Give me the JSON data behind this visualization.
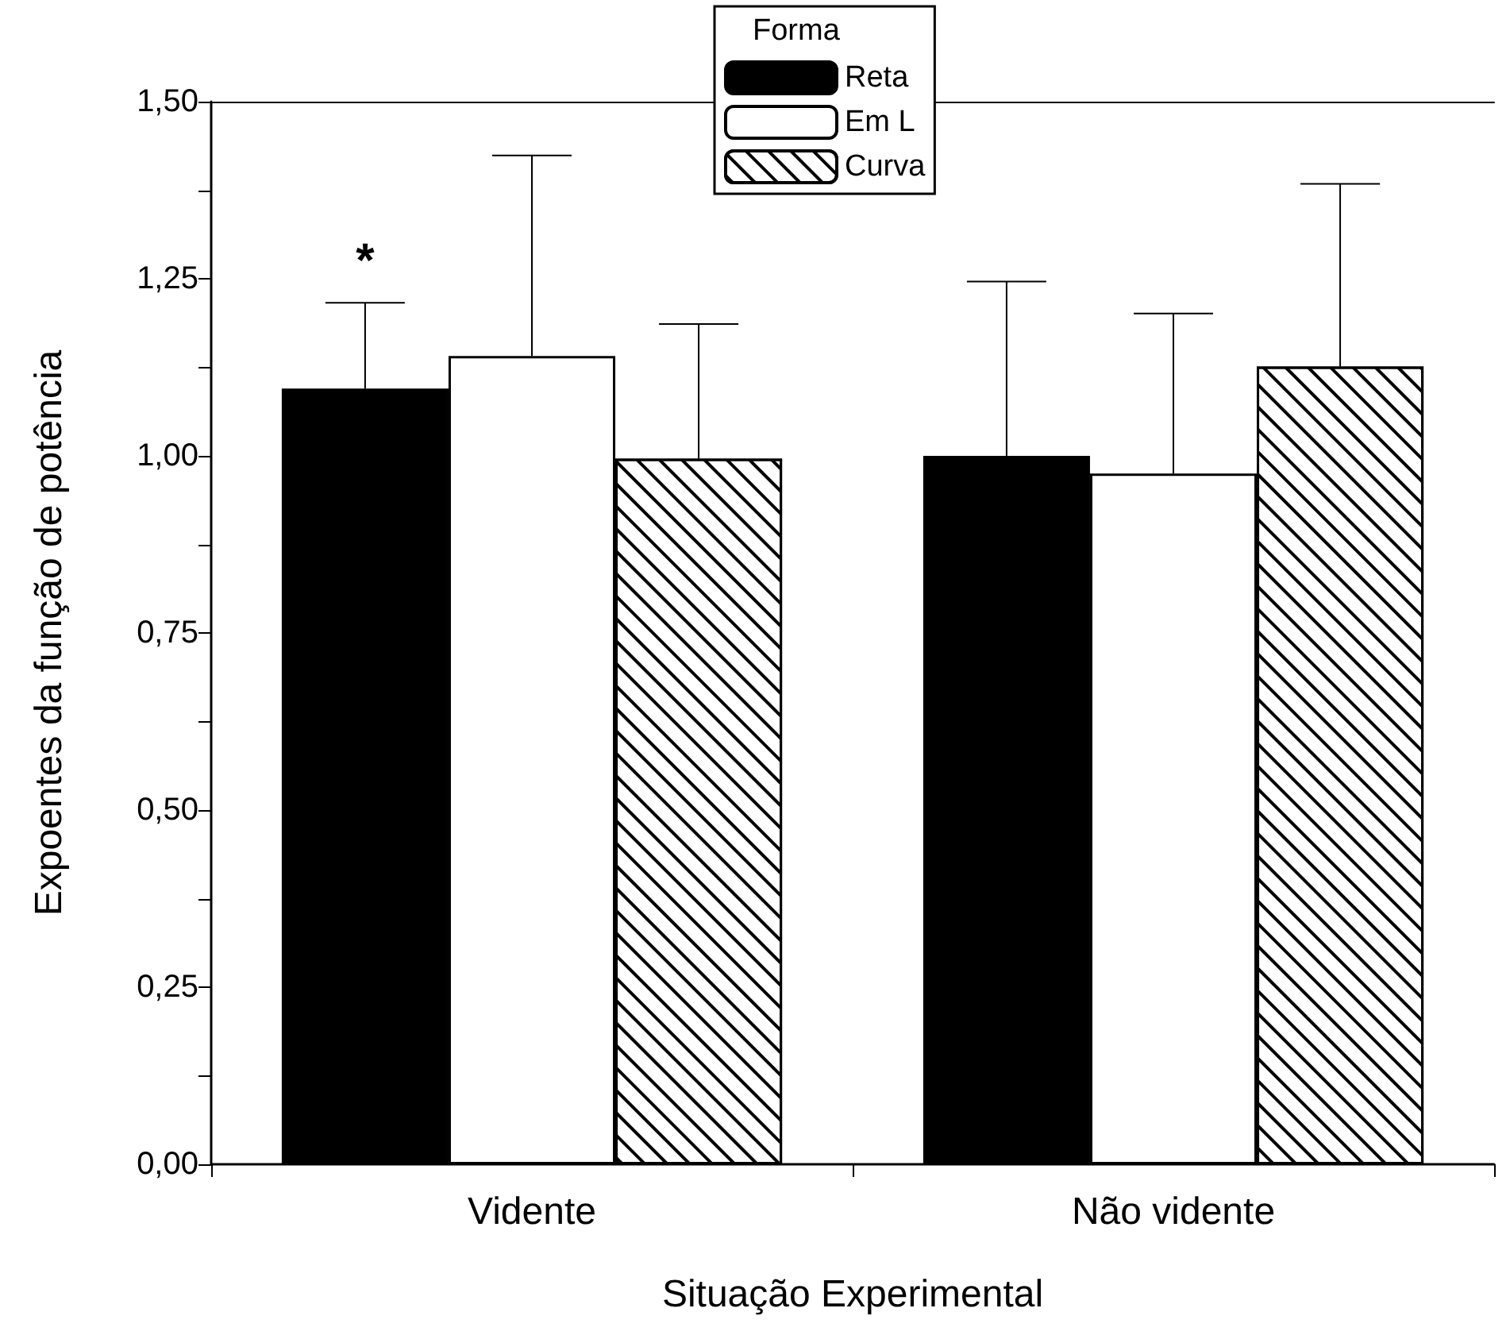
{
  "chart_data": {
    "type": "bar",
    "xlabel": "Situação Experimental",
    "ylabel": "Expoentes da função de potência",
    "legend_title": "Forma",
    "legend": "top",
    "categories": [
      "Vidente",
      "Não vidente"
    ],
    "series": [
      {
        "name": "Reta",
        "color": "#000000",
        "values": [
          1.095,
          1.0
        ],
        "errors": [
          [
            1.095,
            1.216
          ],
          [
            1.0,
            1.246
          ]
        ]
      },
      {
        "name": "Em L",
        "color": "#ffffff",
        "values": [
          1.141,
          0.975
        ],
        "errors": [
          [
            1.141,
            1.424
          ],
          [
            0.975,
            1.201
          ]
        ]
      },
      {
        "name": "Curva",
        "color": "#ffffff",
        "values": [
          0.996,
          1.126
        ],
        "errors": [
          [
            0.996,
            1.186
          ],
          [
            1.126,
            1.384
          ]
        ]
      }
    ],
    "ylim": [
      0,
      1.5
    ],
    "yticks": [
      {
        "value": 0,
        "label": "0,00"
      },
      {
        "value": 0.125,
        "label": null
      },
      {
        "value": 0.25,
        "label": "0,25"
      },
      {
        "value": 0.375,
        "label": null
      },
      {
        "value": 0.5,
        "label": "0,50"
      },
      {
        "value": 0.625,
        "label": null
      },
      {
        "value": 0.75,
        "label": "0,75"
      },
      {
        "value": 0.875,
        "label": null
      },
      {
        "value": 1.0,
        "label": "1,00"
      },
      {
        "value": 1.125,
        "label": null
      },
      {
        "value": 1.25,
        "label": "1,25"
      },
      {
        "value": 1.375,
        "label": null
      },
      {
        "value": 1.5,
        "label": "1,50"
      }
    ],
    "annotations": [
      "*"
    ],
    "grid": false
  }
}
